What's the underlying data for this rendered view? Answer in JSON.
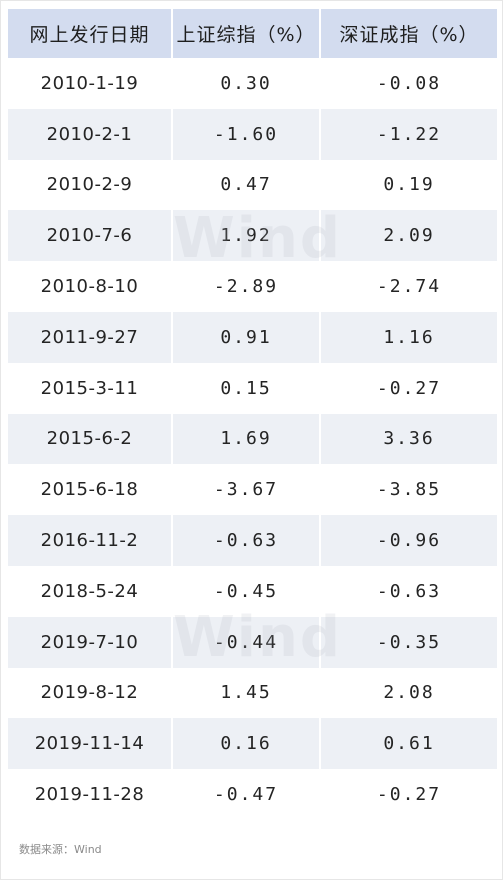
{
  "table": {
    "headers": [
      "网上发行日期",
      "上证综指（%）",
      "深证成指（%）"
    ],
    "rows": [
      [
        "2010-1-19",
        "0.30",
        "-0.08"
      ],
      [
        "2010-2-1",
        "-1.60",
        "-1.22"
      ],
      [
        "2010-2-9",
        "0.47",
        "0.19"
      ],
      [
        "2010-7-6",
        "1.92",
        "2.09"
      ],
      [
        "2010-8-10",
        "-2.89",
        "-2.74"
      ],
      [
        "2011-9-27",
        "0.91",
        "1.16"
      ],
      [
        "2015-3-11",
        "0.15",
        "-0.27"
      ],
      [
        "2015-6-2",
        "1.69",
        "3.36"
      ],
      [
        "2015-6-18",
        "-3.67",
        "-3.85"
      ],
      [
        "2016-11-2",
        "-0.63",
        "-0.96"
      ],
      [
        "2018-5-24",
        "-0.45",
        "-0.63"
      ],
      [
        "2019-7-10",
        "-0.44",
        "-0.35"
      ],
      [
        "2019-8-12",
        "1.45",
        "2.08"
      ],
      [
        "2019-11-14",
        "0.16",
        "0.61"
      ],
      [
        "2019-11-28",
        "-0.47",
        "-0.27"
      ]
    ]
  },
  "watermark": "Wind",
  "source": "数据来源：Wind",
  "colors": {
    "header_bg": "#d3dcef",
    "stripe_bg": "#edf0f5",
    "text": "#242424",
    "source_text": "#8a8a8a"
  }
}
